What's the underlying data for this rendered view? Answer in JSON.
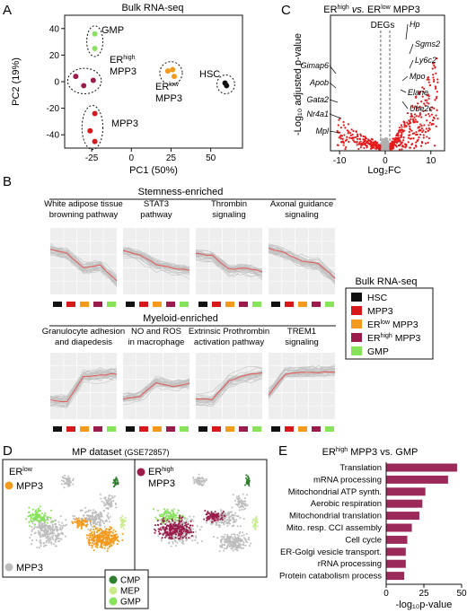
{
  "panels": {
    "A": "A",
    "B": "B",
    "C": "C",
    "D": "D",
    "E": "E"
  },
  "colors": {
    "HSC": "#111111",
    "MPP3": "#d7191c",
    "ERlow": "#f39a1d",
    "ERhigh": "#9b1b4b",
    "GMP": "#86e35a",
    "CMP": "#2f7d2f",
    "MEP": "#c9ec8a",
    "grey": "#bdbdbd",
    "volcano": "#e41a1c",
    "bar": "#9b2a5a"
  },
  "chart_data": [
    {
      "id": "A",
      "type": "scatter",
      "title": "Bulk RNA-seq",
      "xlabel": "PC1 (50%)",
      "ylabel": "PC2 (19%)",
      "xlim": [
        -42,
        70
      ],
      "ylim": [
        -50,
        50
      ],
      "xticks": [
        -25,
        0,
        25,
        50
      ],
      "yticks": [
        -40,
        -20,
        0,
        20,
        40
      ],
      "series": [
        {
          "name": "GMP",
          "color_key": "GMP",
          "points": [
            [
              -23,
              36
            ],
            [
              -23,
              25
            ]
          ]
        },
        {
          "name": "ERhigh MPP3",
          "color_key": "ERhigh",
          "points": [
            [
              -35,
              4
            ],
            [
              -24,
              1
            ],
            [
              -30,
              -3
            ]
          ]
        },
        {
          "name": "ERlow MPP3",
          "color_key": "ERlow",
          "points": [
            [
              23,
              8
            ],
            [
              26,
              9
            ],
            [
              27,
              4
            ]
          ]
        },
        {
          "name": "HSC",
          "color_key": "HSC",
          "points": [
            [
              59,
              -1
            ],
            [
              60,
              -3
            ]
          ]
        },
        {
          "name": "MPP3",
          "color_key": "MPP3",
          "points": [
            [
              -23,
              -24
            ],
            [
              -26,
              -37
            ],
            [
              -23,
              -45
            ]
          ]
        }
      ],
      "group_labels": {
        "GMP": "GMP",
        "ERhigh_sup": "high",
        "ERlow_sup": "low",
        "ER": "ER",
        "MPP3": "MPP3",
        "HSC": "HSC"
      }
    },
    {
      "id": "C",
      "type": "scatter",
      "title_parts": {
        "er1": "ER",
        "sup1": "high",
        "vs": "vs.",
        "er2": "ER",
        "sup2": "low",
        "tail": "MPP3"
      },
      "xlabel": "Log₂FC",
      "ylabel": "-Log₁₀ adjusted p-value",
      "xlim": [
        -12,
        13
      ],
      "xticks": [
        -10,
        0,
        10
      ],
      "threshold_lines": [
        -1,
        1
      ],
      "degs_label": "DEGs",
      "genes_right": [
        "Hp",
        "Sgms2",
        "Ly6c2",
        "Mpo",
        "Elane",
        "Ube2c"
      ],
      "genes_left": [
        "Gimap6",
        "Apob",
        "Gata2",
        "Nr4a1",
        "Mpl"
      ]
    },
    {
      "id": "B",
      "type": "line",
      "group_titles": [
        "Stemness-enriched",
        "Myeloid-enriched"
      ],
      "pathways": [
        {
          "title": [
            "White adipose tissue",
            "browning pathway"
          ],
          "group": 0,
          "profile": [
            0.68,
            0.62,
            0.4,
            0.44,
            0.2
          ]
        },
        {
          "title": [
            "STAT3",
            "pathway"
          ],
          "group": 0,
          "profile": [
            0.66,
            0.6,
            0.45,
            0.4,
            0.36
          ]
        },
        {
          "title": [
            "Thrombin",
            "signaling"
          ],
          "group": 0,
          "profile": [
            0.62,
            0.58,
            0.38,
            0.4,
            0.34
          ]
        },
        {
          "title": [
            "Axonal guidance",
            "signaling"
          ],
          "group": 0,
          "profile": [
            0.7,
            0.62,
            0.5,
            0.46,
            0.24
          ]
        },
        {
          "title": [
            "Granulocyte adhesion",
            "and diapedesis"
          ],
          "group": 1,
          "profile": [
            0.28,
            0.26,
            0.64,
            0.66,
            0.68
          ]
        },
        {
          "title": [
            "NO and ROS",
            "in macrophage"
          ],
          "group": 1,
          "profile": [
            0.3,
            0.34,
            0.55,
            0.5,
            0.54
          ]
        },
        {
          "title": [
            "Extrinsic Prothrombin",
            "activation pathway"
          ],
          "group": 1,
          "profile": [
            0.3,
            0.3,
            0.58,
            0.66,
            0.7
          ]
        },
        {
          "title": [
            "TREM1",
            "signaling"
          ],
          "group": 1,
          "profile": [
            0.36,
            0.68,
            0.7,
            0.7,
            0.72
          ]
        }
      ],
      "column_colors": [
        "HSC",
        "MPP3",
        "ERlow",
        "ERhigh",
        "GMP"
      ],
      "legend": {
        "title": "Bulk RNA-seq",
        "items": [
          {
            "color_key": "HSC",
            "parts": [
              "HSC"
            ]
          },
          {
            "color_key": "MPP3",
            "parts": [
              "MPP3"
            ]
          },
          {
            "color_key": "ERlow",
            "parts": [
              "ER",
              "low",
              " MPP3"
            ]
          },
          {
            "color_key": "ERhigh",
            "parts": [
              "ER",
              "high",
              " MPP3"
            ]
          },
          {
            "color_key": "GMP",
            "parts": [
              "GMP"
            ]
          }
        ]
      }
    },
    {
      "id": "D",
      "type": "scatter",
      "title": "MP dataset",
      "accession": "(GSE72857)",
      "left_labels": {
        "er": "ER",
        "sup": "low",
        "mpp3": "MPP3",
        "grey_label": "MPP3"
      },
      "right_labels": {
        "er": "ER",
        "sup": "high",
        "mpp3": "MPP3"
      },
      "legend": [
        "CMP",
        "MEP",
        "GMP"
      ]
    },
    {
      "id": "E",
      "type": "bar",
      "title_parts": {
        "er": "ER",
        "sup": "high",
        "tail": "MPP3 vs. GMP"
      },
      "xlabel": "-log₁₀p-value",
      "xlim": [
        0,
        50
      ],
      "xticks": [
        0,
        25,
        50
      ],
      "categories": [
        "Translation",
        "mRNA processing",
        "Mitochondrial ATP synth.",
        "Aerobic respiration",
        "Mitochondrial translation",
        "Mito. resp. CCI assembly",
        "Cell cycle",
        "ER-Golgi vesicle transport.",
        "rRNA processing",
        "Protein catabolism process"
      ],
      "values": [
        47,
        41,
        26,
        24,
        22,
        17,
        14,
        13,
        13,
        12
      ]
    }
  ]
}
